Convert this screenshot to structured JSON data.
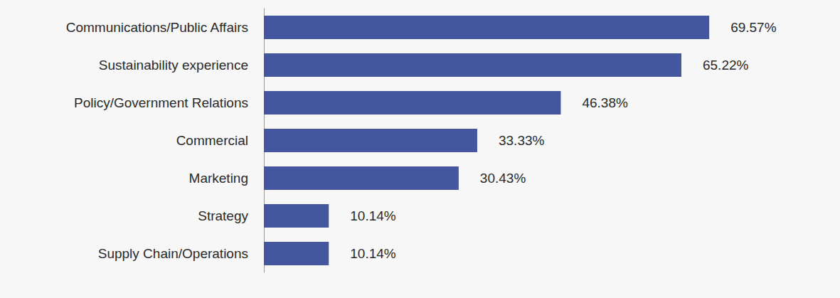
{
  "chart_data": {
    "type": "bar",
    "orientation": "horizontal",
    "categories": [
      "Communications/Public Affairs",
      "Sustainability experience",
      "Policy/Government Relations",
      "Commercial",
      "Marketing",
      "Strategy",
      "Supply Chain/Operations"
    ],
    "values": [
      69.57,
      65.22,
      46.38,
      33.33,
      30.43,
      10.14,
      10.14
    ],
    "value_labels": [
      "69.57%",
      "65.22%",
      "46.38%",
      "33.33%",
      "30.43%",
      "10.14%",
      "10.14%"
    ],
    "color": "#44569e",
    "xlim": [
      0,
      90
    ],
    "grid": false,
    "data_labels": true,
    "tick_labels": "y"
  }
}
